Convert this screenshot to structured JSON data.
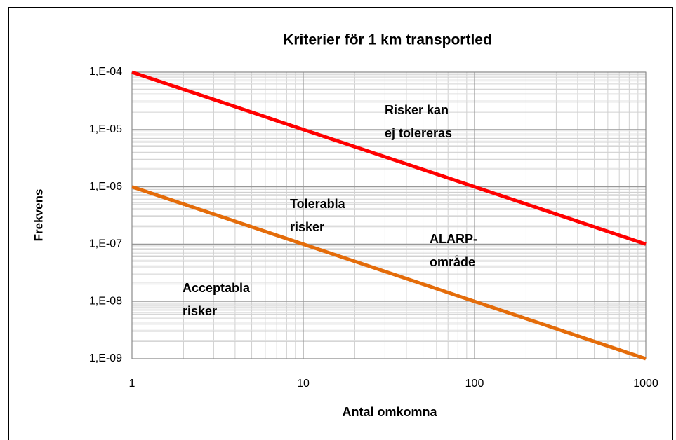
{
  "chart_data": {
    "type": "line",
    "title": "Kriterier för 1 km transportled",
    "xlabel": "Antal omkomna",
    "ylabel": "Frekvens",
    "x": [
      1,
      1000
    ],
    "series": [
      {
        "color": "#ff0000",
        "values": [
          0.0001,
          1e-07
        ]
      },
      {
        "color": "#e46c0a",
        "values": [
          1e-06,
          1e-09
        ]
      }
    ],
    "xlim": [
      1,
      1000
    ],
    "xticks": [
      1,
      10,
      100,
      1000
    ],
    "xscale": "log",
    "ylim": [
      1e-09,
      0.0001
    ],
    "yscale": "log",
    "yticks": [
      {
        "value": 1e-09,
        "label": "1,E-09"
      },
      {
        "value": 1e-08,
        "label": "1,E-08"
      },
      {
        "value": 1e-07,
        "label": "1,E-07"
      },
      {
        "value": 1e-06,
        "label": "1,E-06"
      },
      {
        "value": 1e-05,
        "label": "1,E-05"
      },
      {
        "value": 0.0001,
        "label": "1,E-04"
      }
    ],
    "grid": true,
    "minor_grid": true,
    "annotations": [
      [
        "Risker kan",
        "ej tolereras"
      ],
      [
        "Tolerabla",
        "risker"
      ],
      [
        "ALARP-",
        "område"
      ],
      [
        "Acceptabla",
        "risker"
      ]
    ]
  }
}
